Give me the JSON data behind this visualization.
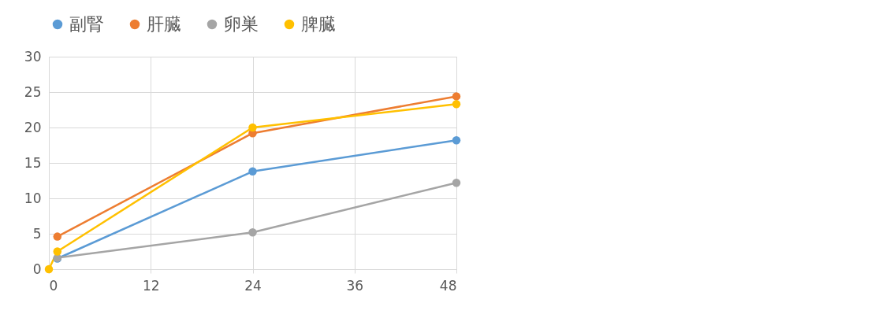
{
  "chart_data": {
    "type": "line",
    "series": [
      {
        "name": "副腎",
        "color": "#5b9bd5",
        "x": [
          1,
          24,
          48
        ],
        "values": [
          1.5,
          13.8,
          18.2
        ]
      },
      {
        "name": "肝臓",
        "color": "#ed7d31",
        "x": [
          1,
          24,
          48
        ],
        "values": [
          4.6,
          19.2,
          24.4
        ]
      },
      {
        "name": "卵巣",
        "color": "#a5a5a5",
        "x": [
          1,
          24,
          48
        ],
        "values": [
          1.6,
          5.2,
          12.2
        ]
      },
      {
        "name": "脾臓",
        "color": "#ffc000",
        "x": [
          0,
          1,
          24,
          48
        ],
        "values": [
          0,
          2.5,
          20,
          23.3
        ]
      }
    ],
    "xlim": [
      0,
      48
    ],
    "xticks": [
      0,
      12,
      24,
      36,
      48
    ],
    "ylim": [
      0,
      30
    ],
    "yticks": [
      0,
      5,
      10,
      15,
      20,
      25,
      30
    ],
    "grid": true,
    "legend": "top",
    "marker": "circle",
    "line_style": "solid"
  }
}
